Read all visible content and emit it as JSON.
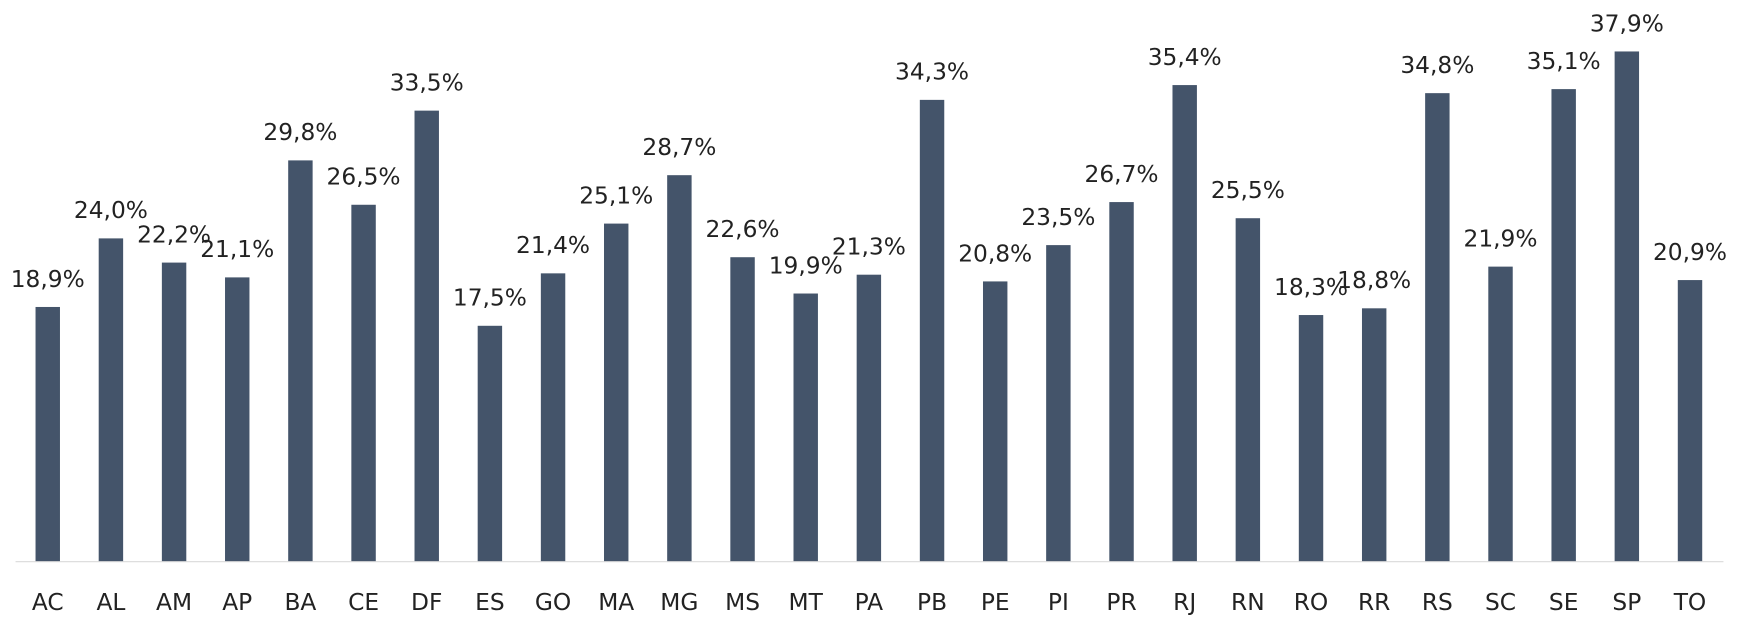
{
  "chart_data": {
    "type": "bar",
    "categories": [
      "AC",
      "AL",
      "AM",
      "AP",
      "BA",
      "CE",
      "DF",
      "ES",
      "GO",
      "MA",
      "MG",
      "MS",
      "MT",
      "PA",
      "PB",
      "PE",
      "PI",
      "PR",
      "RJ",
      "RN",
      "RO",
      "RR",
      "RS",
      "SC",
      "SE",
      "SP",
      "TO"
    ],
    "values": [
      18.9,
      24.0,
      22.2,
      21.1,
      29.8,
      26.5,
      33.5,
      17.5,
      21.4,
      25.1,
      28.7,
      22.6,
      19.9,
      21.3,
      34.3,
      20.8,
      23.5,
      26.7,
      35.4,
      25.5,
      18.3,
      18.8,
      34.8,
      21.9,
      35.1,
      37.9,
      20.9
    ],
    "value_labels": [
      "18,9%",
      "24,0%",
      "22,2%",
      "21,1%",
      "29,8%",
      "26,5%",
      "33,5%",
      "17,5%",
      "21,4%",
      "25,1%",
      "28,7%",
      "22,6%",
      "19,9%",
      "21,3%",
      "34,3%",
      "20,8%",
      "23,5%",
      "26,7%",
      "35,4%",
      "25,5%",
      "18,3%",
      "18,8%",
      "34,8%",
      "21,9%",
      "35,1%",
      "37,9%",
      "20,9%"
    ],
    "color": "#44546a"
  }
}
